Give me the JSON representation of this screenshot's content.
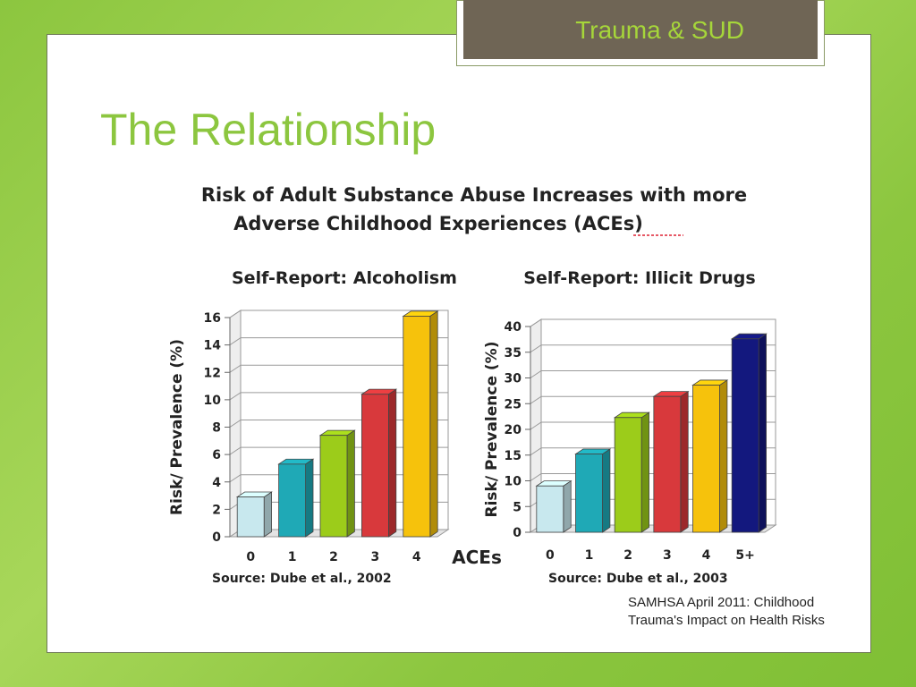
{
  "header": {
    "tag": "Trauma & SUD"
  },
  "slide": {
    "title": "The Relationship",
    "caption": "SAMHSA April 2011: Childhood Trauma's Impact on Health Risks"
  },
  "figure": {
    "title_line1": "Risk of Adult Substance Abuse Increases with more",
    "title_line2": "Adverse Childhood Experiences (ACEs)",
    "shared_xlabel": "ACEs"
  },
  "chart_data": [
    {
      "type": "bar",
      "title": "Self-Report: Alcoholism",
      "ylabel": "Risk/ Prevalence (%)",
      "xlabel": "ACEs",
      "source": "Source: Dube et  al., 2002",
      "categories": [
        "0",
        "1",
        "2",
        "3",
        "4"
      ],
      "values": [
        2.9,
        5.3,
        7.4,
        10.4,
        16.1
      ],
      "colors": [
        "#c8e8ee",
        "#1fa9b6",
        "#9ccc1a",
        "#d8393c",
        "#f6c20c"
      ],
      "ylim": [
        0,
        16
      ],
      "yticks": [
        "0",
        "2",
        "4",
        "6",
        "8",
        "10",
        "12",
        "14",
        "16"
      ],
      "grid": true
    },
    {
      "type": "bar",
      "title": "Self-Report: Illicit Drugs",
      "ylabel": "Risk/ Prevalence (%)",
      "xlabel": "ACEs",
      "source": "Source: Dube et  al., 2003",
      "categories": [
        "0",
        "1",
        "2",
        "3",
        "4",
        "5+"
      ],
      "values": [
        9.0,
        15.2,
        22.3,
        26.4,
        28.6,
        37.6
      ],
      "colors": [
        "#c8e8ee",
        "#1fa9b6",
        "#9ccc1a",
        "#d8393c",
        "#f6c20c",
        "#13187e"
      ],
      "ylim": [
        0,
        40
      ],
      "yticks": [
        "0",
        "5",
        "10",
        "15",
        "20",
        "25",
        "30",
        "35",
        "40"
      ],
      "grid": true
    }
  ]
}
